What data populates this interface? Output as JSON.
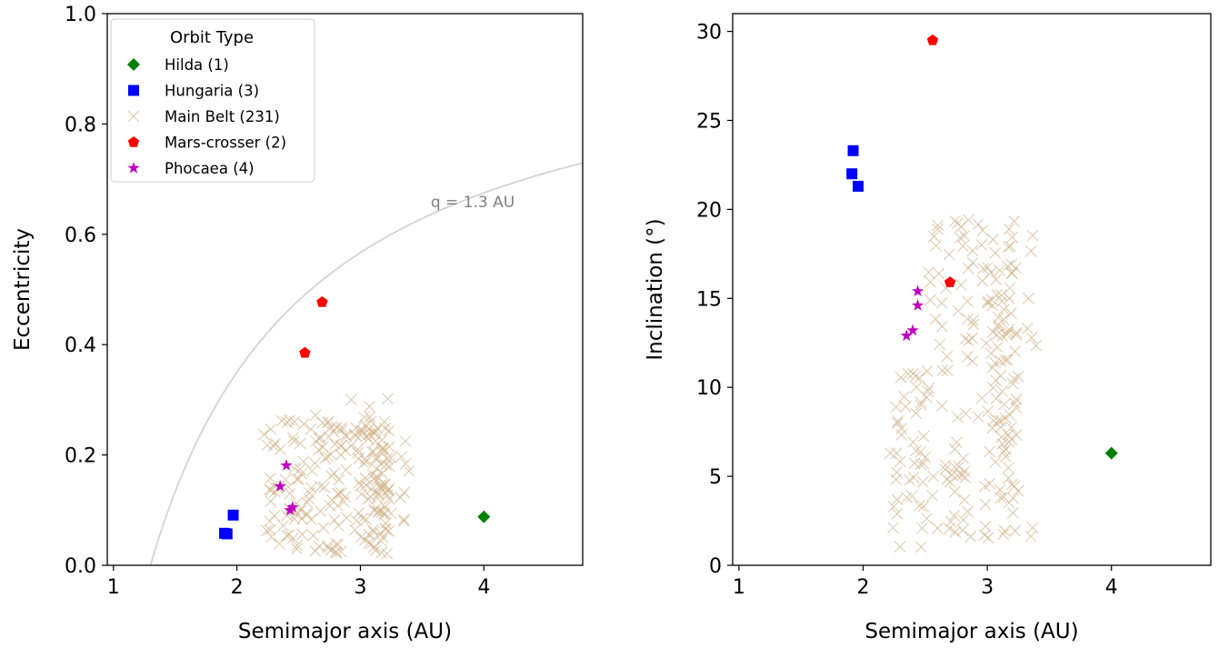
{
  "chart_data": [
    {
      "type": "scatter",
      "xlabel": "Semimajor axis (AU)",
      "ylabel": "Eccentricity",
      "xlim": [
        0.95,
        4.8
      ],
      "ylim": [
        0,
        1.0
      ],
      "xticks": [
        1,
        2,
        3,
        4
      ],
      "xtick_labels": [
        "1",
        "2",
        "3",
        "4"
      ],
      "yticks": [
        0,
        0.2,
        0.4,
        0.6,
        0.8,
        1.0
      ],
      "ytick_labels": [
        "0.0",
        "0.2",
        "0.4",
        "0.6",
        "0.8",
        "1.0"
      ],
      "grid": false,
      "legend": {
        "title": "Orbit Type",
        "position": "top-left",
        "entries": [
          "Hilda (1)",
          "Hungaria (3)",
          "Main Belt (231)",
          "Mars-crosser (2)",
          "Phocaea (4)"
        ]
      },
      "curve": {
        "label": "q = 1.3 AU",
        "q": 1.3,
        "color": "#d3d3d3"
      },
      "series": [
        {
          "name": "Hilda (1)",
          "marker": "diamond",
          "color": "#008000",
          "points": [
            [
              4.0,
              0.088
            ]
          ]
        },
        {
          "name": "Hungaria (3)",
          "marker": "square",
          "color": "#0000ff",
          "points": [
            [
              1.9,
              0.058
            ],
            [
              1.92,
              0.057
            ],
            [
              1.97,
              0.091
            ]
          ]
        },
        {
          "name": "Main Belt (231)",
          "marker": "x",
          "color": "#d2b48c",
          "points": []
        },
        {
          "name": "Mars-crosser (2)",
          "marker": "pentagon",
          "color": "#ff0000",
          "points": [
            [
              2.55,
              0.385
            ],
            [
              2.69,
              0.477
            ]
          ]
        },
        {
          "name": "Phocaea (4)",
          "marker": "star",
          "color": "#bf00bf",
          "points": [
            [
              2.35,
              0.143
            ],
            [
              2.4,
              0.181
            ],
            [
              2.43,
              0.1
            ],
            [
              2.45,
              0.105
            ]
          ]
        }
      ]
    },
    {
      "type": "scatter",
      "xlabel": "Semimajor axis (AU)",
      "ylabel": "Inclination (°)",
      "xlim": [
        0.95,
        4.8
      ],
      "ylim": [
        0,
        31
      ],
      "xticks": [
        1,
        2,
        3,
        4
      ],
      "xtick_labels": [
        "1",
        "2",
        "3",
        "4"
      ],
      "yticks": [
        0,
        5,
        10,
        15,
        20,
        25,
        30
      ],
      "ytick_labels": [
        "0",
        "5",
        "10",
        "15",
        "20",
        "25",
        "30"
      ],
      "grid": false,
      "series": [
        {
          "name": "Hilda (1)",
          "marker": "diamond",
          "color": "#008000",
          "points": [
            [
              4.0,
              6.3
            ]
          ]
        },
        {
          "name": "Hungaria (3)",
          "marker": "square",
          "color": "#0000ff",
          "points": [
            [
              1.92,
              23.3
            ],
            [
              1.91,
              22.0
            ],
            [
              1.96,
              21.3
            ]
          ]
        },
        {
          "name": "Main Belt (231)",
          "marker": "x",
          "color": "#d2b48c",
          "points": []
        },
        {
          "name": "Mars-crosser (2)",
          "marker": "pentagon",
          "color": "#ff0000",
          "points": [
            [
              2.56,
              29.5
            ],
            [
              2.7,
              15.9
            ]
          ]
        },
        {
          "name": "Phocaea (4)",
          "marker": "star",
          "color": "#bf00bf",
          "points": [
            [
              2.35,
              12.9
            ],
            [
              2.4,
              13.2
            ],
            [
              2.44,
              14.6
            ],
            [
              2.44,
              15.4
            ]
          ]
        }
      ]
    }
  ]
}
